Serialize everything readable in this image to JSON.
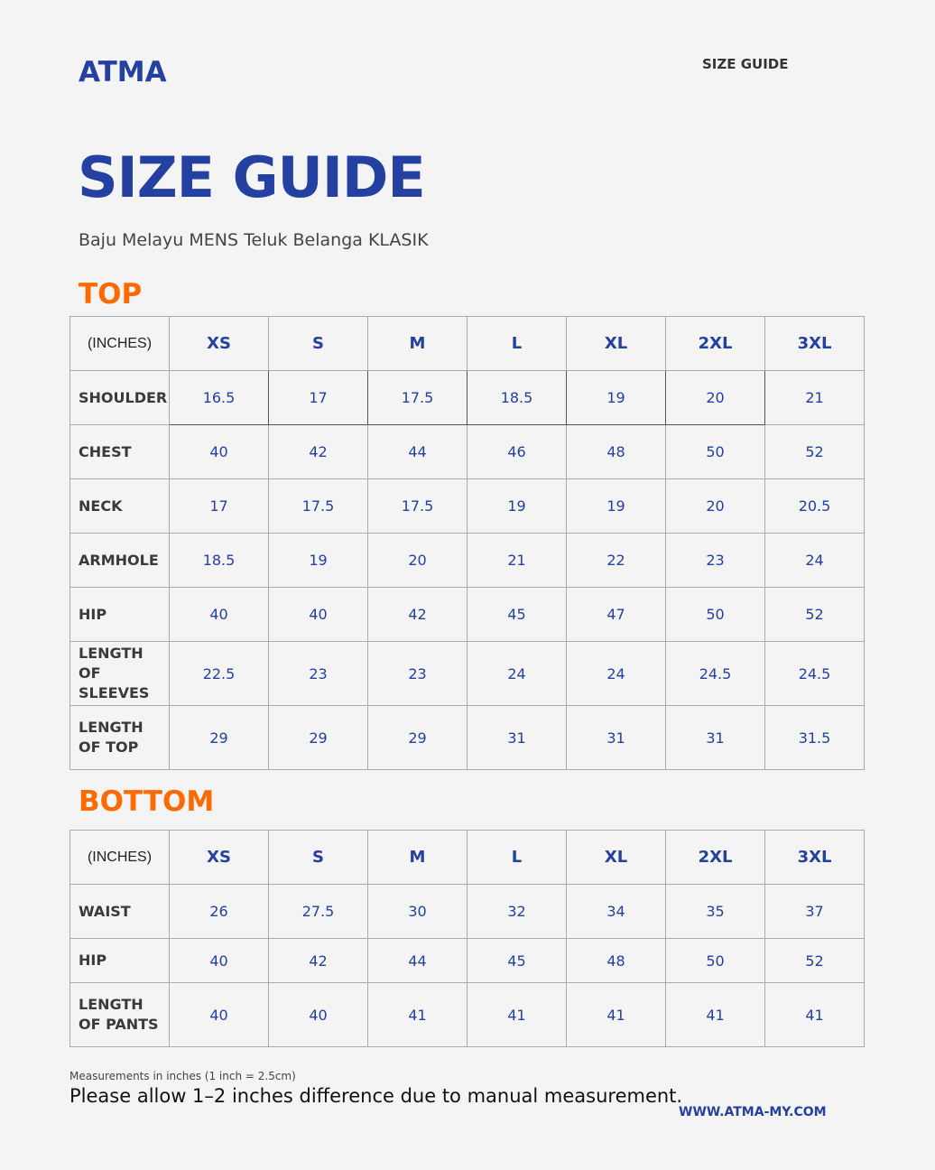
{
  "brand": "ATMA",
  "header_label": "SIZE GUIDE",
  "title": "SIZE GUIDE",
  "subtitle": "Baju Melayu MENS Teluk Belanga KLASIK",
  "top": {
    "heading": "TOP",
    "corner": "(INCHES)",
    "sizes": [
      "XS",
      "S",
      "M",
      "L",
      "XL",
      "2XL",
      "3XL"
    ],
    "rows": [
      {
        "label": "SHOULDER",
        "values": [
          "16.5",
          "17",
          "17.5",
          "18.5",
          "19",
          "20",
          "21"
        ]
      },
      {
        "label": "CHEST",
        "values": [
          "40",
          "42",
          "44",
          "46",
          "48",
          "50",
          "52"
        ]
      },
      {
        "label": "NECK",
        "values": [
          "17",
          "17.5",
          "17.5",
          "19",
          "19",
          "20",
          "20.5"
        ]
      },
      {
        "label": "ARMHOLE",
        "values": [
          "18.5",
          "19",
          "20",
          "21",
          "22",
          "23",
          "24"
        ]
      },
      {
        "label": "HIP",
        "values": [
          "40",
          "40",
          "42",
          "45",
          "47",
          "50",
          "52"
        ]
      },
      {
        "label": "LENGTH OF SLEEVES",
        "values": [
          "22.5",
          "23",
          "23",
          "24",
          "24",
          "24.5",
          "24.5"
        ]
      },
      {
        "label": "LENGTH OF TOP",
        "values": [
          "29",
          "29",
          "29",
          "31",
          "31",
          "31",
          "31.5"
        ]
      }
    ]
  },
  "bottom": {
    "heading": "BOTTOM",
    "corner": "(INCHES)",
    "sizes": [
      "XS",
      "S",
      "M",
      "L",
      "XL",
      "2XL",
      "3XL"
    ],
    "rows": [
      {
        "label": "WAIST",
        "values": [
          "26",
          "27.5",
          "30",
          "32",
          "34",
          "35",
          "37"
        ]
      },
      {
        "label": "HIP",
        "values": [
          "40",
          "42",
          "44",
          "45",
          "48",
          "50",
          "52"
        ]
      },
      {
        "label": "LENGTH OF PANTS",
        "values": [
          "40",
          "40",
          "41",
          "41",
          "41",
          "41",
          "41"
        ]
      }
    ]
  },
  "footer": {
    "note": "Measurements in inches (1 inch = 2.5cm)",
    "disclaimer": "Please allow 1–2 inches difference due to manual measurement.",
    "website": "WWW.ATMA-MY.COM"
  },
  "colors": {
    "brand_blue": "#2440a0",
    "section_orange": "#ff6a00"
  }
}
